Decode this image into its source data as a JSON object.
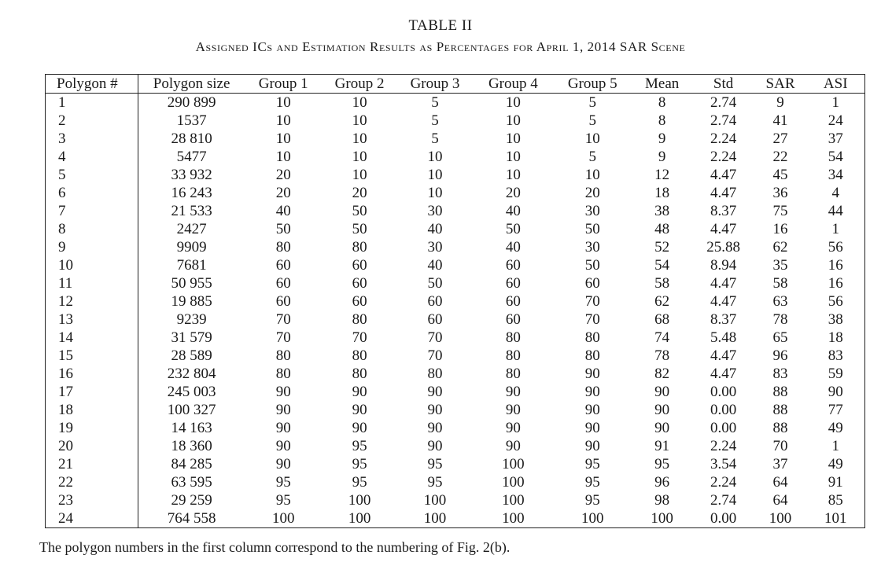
{
  "title": "TABLE II",
  "caption": "Assigned ICs and Estimation Results as Percentages for April 1, 2014 SAR Scene",
  "columns": [
    "Polygon #",
    "Polygon size",
    "Group 1",
    "Group 2",
    "Group 3",
    "Group 4",
    "Group 5",
    "Mean",
    "Std",
    "SAR",
    "ASI"
  ],
  "rows": [
    [
      "1",
      "290 899",
      "10",
      "10",
      "5",
      "10",
      "5",
      "8",
      "2.74",
      "9",
      "1"
    ],
    [
      "2",
      "1537",
      "10",
      "10",
      "5",
      "10",
      "5",
      "8",
      "2.74",
      "41",
      "24"
    ],
    [
      "3",
      "28 810",
      "10",
      "10",
      "5",
      "10",
      "10",
      "9",
      "2.24",
      "27",
      "37"
    ],
    [
      "4",
      "5477",
      "10",
      "10",
      "10",
      "10",
      "5",
      "9",
      "2.24",
      "22",
      "54"
    ],
    [
      "5",
      "33 932",
      "20",
      "10",
      "10",
      "10",
      "10",
      "12",
      "4.47",
      "45",
      "34"
    ],
    [
      "6",
      "16 243",
      "20",
      "20",
      "10",
      "20",
      "20",
      "18",
      "4.47",
      "36",
      "4"
    ],
    [
      "7",
      "21 533",
      "40",
      "50",
      "30",
      "40",
      "30",
      "38",
      "8.37",
      "75",
      "44"
    ],
    [
      "8",
      "2427",
      "50",
      "50",
      "40",
      "50",
      "50",
      "48",
      "4.47",
      "16",
      "1"
    ],
    [
      "9",
      "9909",
      "80",
      "80",
      "30",
      "40",
      "30",
      "52",
      "25.88",
      "62",
      "56"
    ],
    [
      "10",
      "7681",
      "60",
      "60",
      "40",
      "60",
      "50",
      "54",
      "8.94",
      "35",
      "16"
    ],
    [
      "11",
      "50 955",
      "60",
      "60",
      "50",
      "60",
      "60",
      "58",
      "4.47",
      "58",
      "16"
    ],
    [
      "12",
      "19 885",
      "60",
      "60",
      "60",
      "60",
      "70",
      "62",
      "4.47",
      "63",
      "56"
    ],
    [
      "13",
      "9239",
      "70",
      "80",
      "60",
      "60",
      "70",
      "68",
      "8.37",
      "78",
      "38"
    ],
    [
      "14",
      "31 579",
      "70",
      "70",
      "70",
      "80",
      "80",
      "74",
      "5.48",
      "65",
      "18"
    ],
    [
      "15",
      "28 589",
      "80",
      "80",
      "70",
      "80",
      "80",
      "78",
      "4.47",
      "96",
      "83"
    ],
    [
      "16",
      "232 804",
      "80",
      "80",
      "80",
      "80",
      "90",
      "82",
      "4.47",
      "83",
      "59"
    ],
    [
      "17",
      "245 003",
      "90",
      "90",
      "90",
      "90",
      "90",
      "90",
      "0.00",
      "88",
      "90"
    ],
    [
      "18",
      "100 327",
      "90",
      "90",
      "90",
      "90",
      "90",
      "90",
      "0.00",
      "88",
      "77"
    ],
    [
      "19",
      "14 163",
      "90",
      "90",
      "90",
      "90",
      "90",
      "90",
      "0.00",
      "88",
      "49"
    ],
    [
      "20",
      "18 360",
      "90",
      "95",
      "90",
      "90",
      "90",
      "91",
      "2.24",
      "70",
      "1"
    ],
    [
      "21",
      "84 285",
      "90",
      "95",
      "95",
      "100",
      "95",
      "95",
      "3.54",
      "37",
      "49"
    ],
    [
      "22",
      "63 595",
      "95",
      "95",
      "95",
      "100",
      "95",
      "96",
      "2.24",
      "64",
      "91"
    ],
    [
      "23",
      "29 259",
      "95",
      "100",
      "100",
      "100",
      "95",
      "98",
      "2.74",
      "64",
      "85"
    ],
    [
      "24",
      "764 558",
      "100",
      "100",
      "100",
      "100",
      "100",
      "100",
      "0.00",
      "100",
      "101"
    ]
  ],
  "footnote": "The polygon numbers in the first column correspond to the numbering of Fig. 2(b)."
}
